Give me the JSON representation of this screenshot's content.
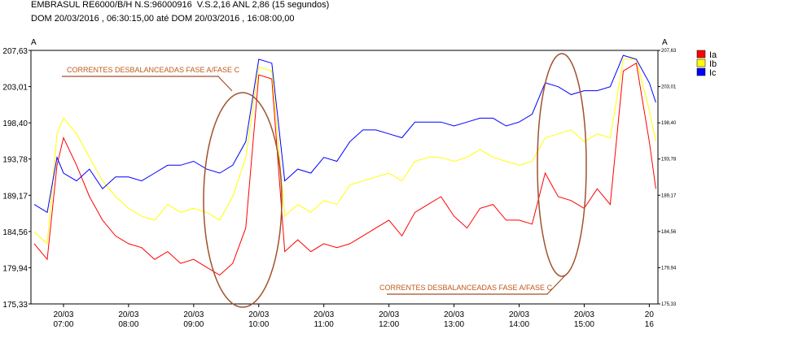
{
  "header": {
    "line1": "EMBRASUL RE6000/B/H N.S:96000916  V.S.2,16 ANL 2,86 (15 segundos)",
    "line2": "DOM 20/03/2016 , 06:30:15,00 até DOM 20/03/2016 , 16:08:00,00"
  },
  "chart_data": {
    "type": "line",
    "ylabel_left": "A",
    "ylabel_right": "A",
    "ylim": [
      175.33,
      207.63
    ],
    "yticks": [
      "207,63",
      "203,01",
      "198,40",
      "193,78",
      "189,17",
      "184,56",
      "179,94",
      "175,33"
    ],
    "xlim": [
      6.5,
      16.133
    ],
    "xticks": [
      {
        "date": "20/03",
        "time": "07:00",
        "x": 7
      },
      {
        "date": "20/03",
        "time": "08:00",
        "x": 8
      },
      {
        "date": "20/03",
        "time": "09:00",
        "x": 9
      },
      {
        "date": "20/03",
        "time": "10:00",
        "x": 10
      },
      {
        "date": "20/03",
        "time": "11:00",
        "x": 11
      },
      {
        "date": "20/03",
        "time": "12:00",
        "x": 12
      },
      {
        "date": "20/03",
        "time": "13:00",
        "x": 13
      },
      {
        "date": "20/03",
        "time": "14:00",
        "x": 14
      },
      {
        "date": "20/03",
        "time": "15:00",
        "x": 15
      },
      {
        "date": "20",
        "time": "16",
        "x": 16
      }
    ],
    "grid": false,
    "legend_position": "right",
    "series": [
      {
        "name": "Ia",
        "color": "#ff0000",
        "x": [
          6.55,
          6.75,
          6.9,
          7.0,
          7.2,
          7.4,
          7.6,
          7.8,
          8.0,
          8.2,
          8.4,
          8.6,
          8.8,
          9.0,
          9.2,
          9.4,
          9.6,
          9.8,
          10.0,
          10.2,
          10.4,
          10.6,
          10.8,
          11.0,
          11.2,
          11.4,
          11.6,
          11.8,
          12.0,
          12.2,
          12.4,
          12.6,
          12.8,
          13.0,
          13.2,
          13.4,
          13.6,
          13.8,
          14.0,
          14.2,
          14.4,
          14.6,
          14.8,
          15.0,
          15.2,
          15.4,
          15.6,
          15.8,
          16.0,
          16.1
        ],
        "y": [
          183.0,
          181.0,
          193.0,
          196.5,
          193.0,
          189.0,
          186.0,
          184.0,
          183.0,
          182.5,
          181.0,
          182.0,
          180.5,
          181.0,
          180.0,
          179.0,
          180.5,
          185.0,
          204.5,
          204.0,
          182.0,
          183.5,
          182.0,
          183.0,
          182.5,
          183.0,
          184.0,
          185.0,
          186.0,
          184.0,
          187.0,
          188.0,
          189.0,
          186.5,
          185.0,
          187.5,
          188.0,
          186.0,
          186.0,
          185.5,
          192.0,
          189.0,
          188.5,
          187.5,
          190.0,
          188.0,
          205.0,
          206.0,
          196.0,
          190.0
        ]
      },
      {
        "name": "Ib",
        "color": "#ffff00",
        "x": [
          6.55,
          6.75,
          6.9,
          7.0,
          7.2,
          7.4,
          7.6,
          7.8,
          8.0,
          8.2,
          8.4,
          8.6,
          8.8,
          9.0,
          9.2,
          9.4,
          9.6,
          9.8,
          10.0,
          10.2,
          10.4,
          10.6,
          10.8,
          11.0,
          11.2,
          11.4,
          11.6,
          11.8,
          12.0,
          12.2,
          12.4,
          12.6,
          12.8,
          13.0,
          13.2,
          13.4,
          13.6,
          13.8,
          14.0,
          14.2,
          14.4,
          14.6,
          14.8,
          15.0,
          15.2,
          15.4,
          15.6,
          15.8,
          16.0,
          16.1
        ],
        "y": [
          184.5,
          183.0,
          197.0,
          199.0,
          197.0,
          194.0,
          191.0,
          189.0,
          187.5,
          186.5,
          186.0,
          188.0,
          187.0,
          187.5,
          187.0,
          186.0,
          189.0,
          194.0,
          205.5,
          205.0,
          186.5,
          188.0,
          187.0,
          188.5,
          188.0,
          190.5,
          191.0,
          191.5,
          192.0,
          191.0,
          193.5,
          194.0,
          194.0,
          193.5,
          194.0,
          195.0,
          194.0,
          193.5,
          193.0,
          193.5,
          196.5,
          197.0,
          197.5,
          196.0,
          197.0,
          196.5,
          206.5,
          206.5,
          200.0,
          196.0
        ]
      },
      {
        "name": "Ic",
        "color": "#0000ff",
        "x": [
          6.55,
          6.75,
          6.9,
          7.0,
          7.2,
          7.4,
          7.6,
          7.8,
          8.0,
          8.2,
          8.4,
          8.6,
          8.8,
          9.0,
          9.2,
          9.4,
          9.6,
          9.8,
          10.0,
          10.2,
          10.4,
          10.6,
          10.8,
          11.0,
          11.2,
          11.4,
          11.6,
          11.8,
          12.0,
          12.2,
          12.4,
          12.6,
          12.8,
          13.0,
          13.2,
          13.4,
          13.6,
          13.8,
          14.0,
          14.2,
          14.4,
          14.6,
          14.8,
          15.0,
          15.2,
          15.4,
          15.6,
          15.8,
          16.0,
          16.1
        ],
        "y": [
          188.0,
          187.0,
          194.0,
          192.0,
          191.0,
          192.5,
          190.0,
          191.5,
          191.5,
          191.0,
          192.0,
          193.0,
          193.0,
          193.5,
          192.5,
          192.0,
          193.0,
          196.0,
          206.5,
          206.0,
          191.0,
          192.5,
          192.0,
          194.0,
          193.5,
          196.0,
          197.5,
          197.5,
          197.0,
          196.5,
          198.5,
          198.5,
          198.5,
          198.0,
          198.5,
          199.0,
          199.0,
          198.0,
          198.5,
          199.5,
          203.5,
          203.0,
          202.0,
          202.5,
          202.5,
          203.0,
          207.0,
          206.5,
          203.5,
          201.0
        ]
      }
    ],
    "annotations": [
      {
        "text": "CORRENTES DESBALANCEADAS FASE A/FASE C"
      },
      {
        "text": "CORRENTES DESBALANCEADAS FASE A/FASE C"
      }
    ]
  },
  "colors": {
    "annotation": "#b5651d",
    "axis": "#000000"
  }
}
